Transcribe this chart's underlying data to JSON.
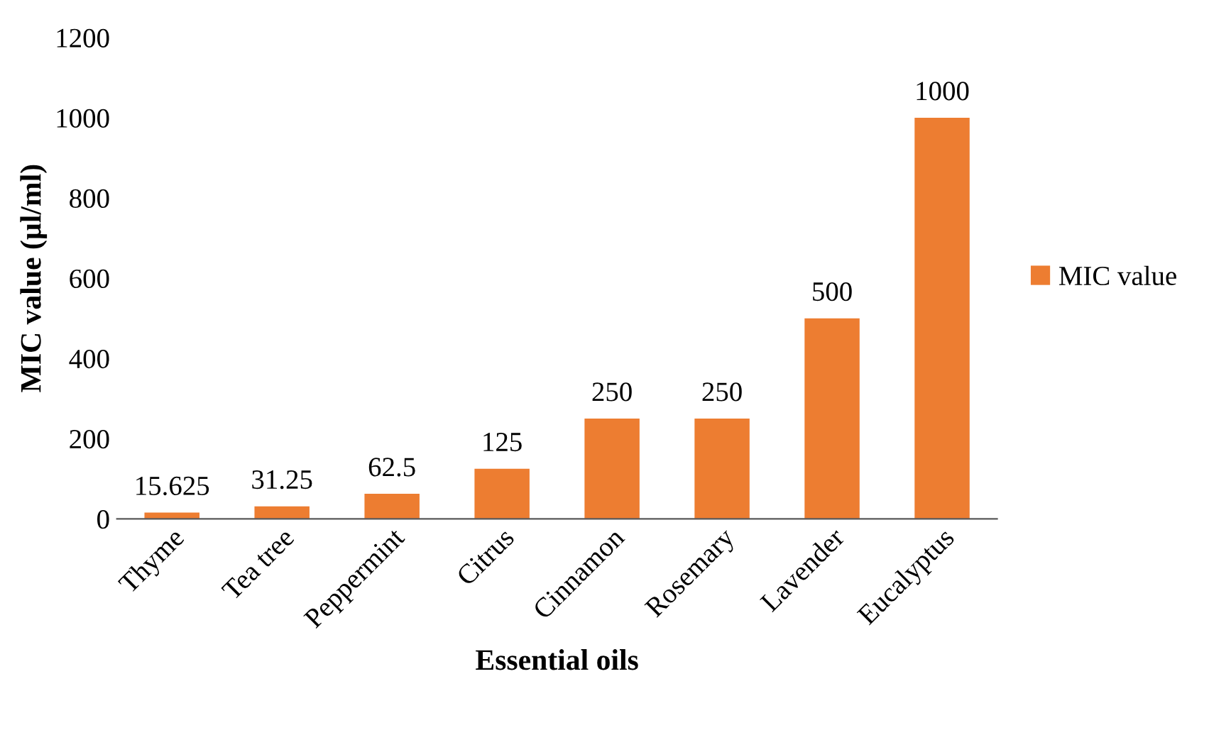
{
  "chart_data": {
    "type": "bar",
    "xlabel": "Essential oils",
    "ylabel": "MIC value (µl/ml)",
    "categories": [
      "Thyme",
      "Tea tree",
      "Peppermint",
      "Citrus",
      "Cinnamon",
      "Rosemary",
      "Lavender",
      "Eucalyptus"
    ],
    "series": [
      {
        "name": "MIC value",
        "color": "#ed7d31",
        "values": [
          15.625,
          31.25,
          62.5,
          125,
          250,
          250,
          500,
          1000
        ]
      }
    ],
    "ylim": [
      0,
      1200
    ],
    "yticks": [
      0,
      200,
      400,
      600,
      800,
      1000,
      1200
    ],
    "grid": false,
    "legend": "right",
    "data_labels": true
  }
}
